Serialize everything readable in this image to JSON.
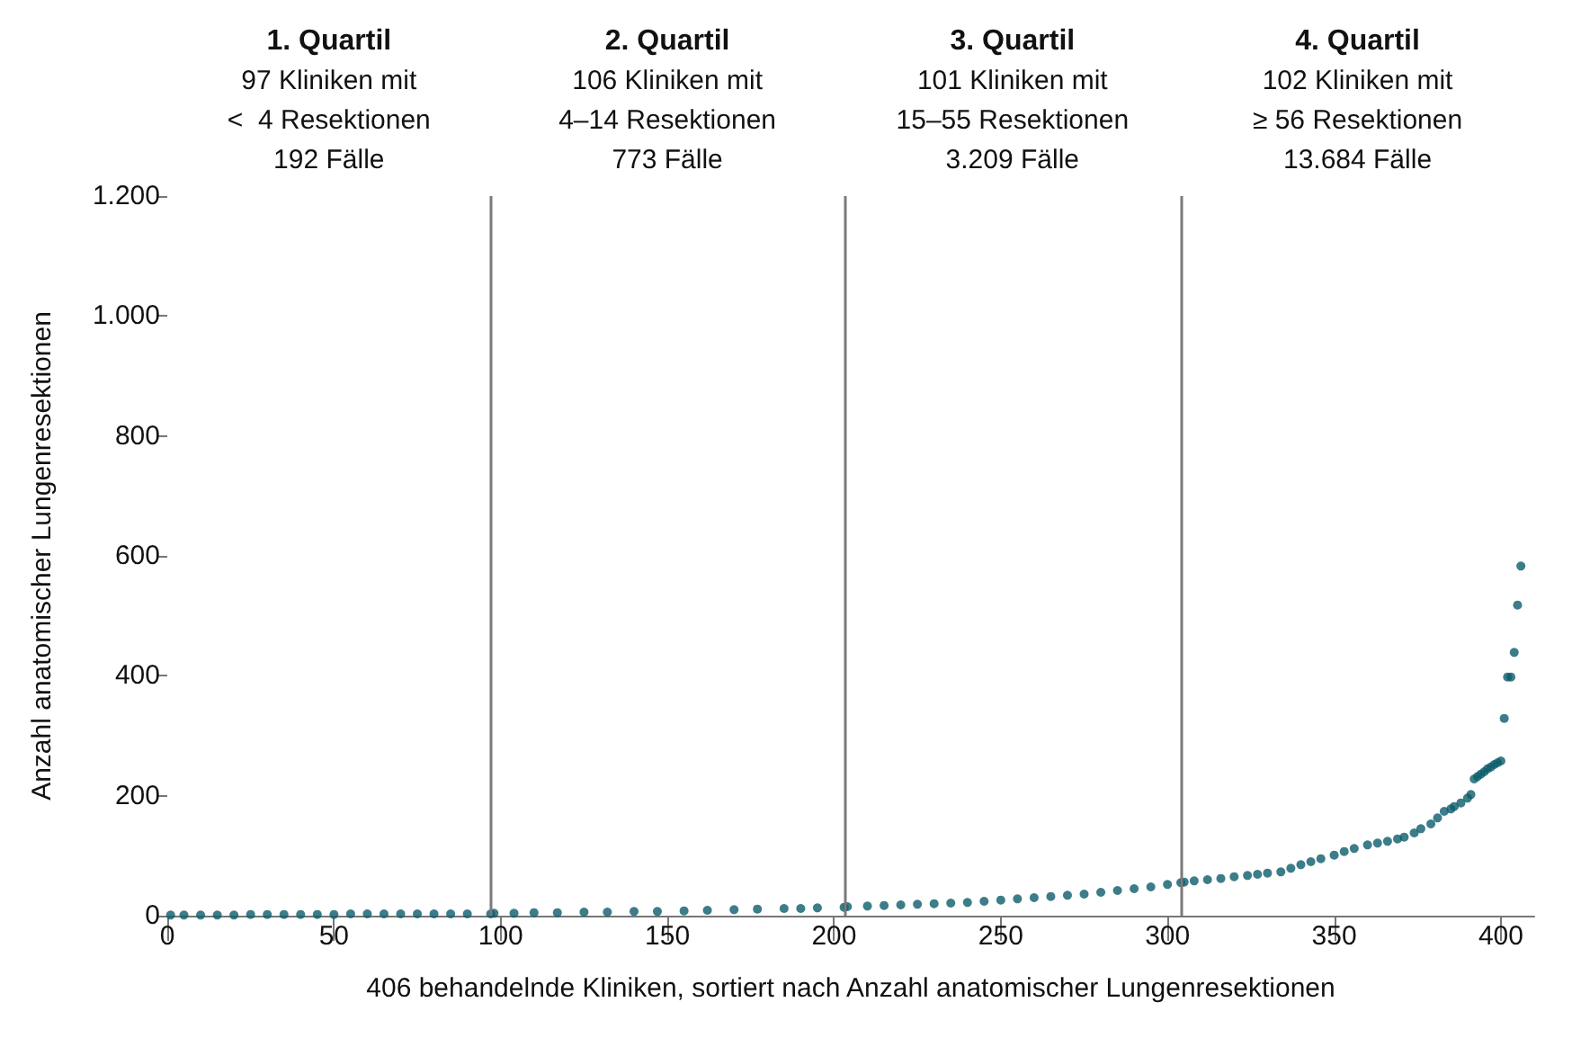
{
  "chart_data": {
    "type": "scatter",
    "xlabel": "406 behandelnde Kliniken, sortiert nach Anzahl anatomischer Lungenresektionen",
    "ylabel": "Anzahl anatomischer Lungenresektionen",
    "annotations": [
      "1. Quartil\n97 Kliniken mit\n<  4 Resektionen\n192 Fälle",
      "2. Quartil\n106 Kliniken mit\n4–14 Resektionen\n773 Fälle",
      "3. Quartil\n101 Kliniken mit\n15–55 Resektionen\n3.209 Fälle",
      "4. Quartil\n102 Kliniken mit\n≥ 56 Resektionen\n13.684 Fälle"
    ],
    "series": [
      {
        "color": "#0b5c6b",
        "x": [
          1,
          5,
          10,
          15,
          20,
          25,
          30,
          35,
          40,
          45,
          50,
          55,
          60,
          65,
          70,
          75,
          80,
          85,
          90,
          97,
          98,
          104,
          110,
          117,
          125,
          132,
          140,
          147,
          155,
          162,
          170,
          177,
          185,
          190,
          195,
          203,
          204,
          210,
          215,
          220,
          225,
          230,
          235,
          240,
          245,
          250,
          255,
          260,
          265,
          270,
          275,
          280,
          285,
          290,
          295,
          300,
          304,
          305,
          308,
          312,
          316,
          320,
          324,
          327,
          330,
          334,
          337,
          340,
          343,
          346,
          350,
          353,
          356,
          360,
          363,
          366,
          369,
          371,
          374,
          376,
          379,
          381,
          383,
          385,
          386,
          388,
          390,
          391,
          392,
          393,
          394,
          395,
          396,
          397,
          398,
          399,
          400,
          401,
          402,
          403,
          404,
          405,
          406
        ],
        "values": [
          1,
          1,
          1,
          1,
          1,
          2,
          2,
          2,
          2,
          2,
          2,
          3,
          3,
          3,
          3,
          3,
          3,
          3,
          3,
          3,
          4,
          4,
          5,
          5,
          6,
          6,
          7,
          7,
          8,
          9,
          10,
          11,
          12,
          12,
          13,
          14,
          15,
          16,
          17,
          18,
          19,
          20,
          21,
          22,
          24,
          26,
          28,
          30,
          32,
          34,
          36,
          39,
          42,
          45,
          48,
          52,
          55,
          56,
          58,
          60,
          62,
          65,
          67,
          69,
          71,
          73,
          79,
          85,
          90,
          95,
          101,
          107,
          112,
          118,
          121,
          124,
          128,
          131,
          138,
          145,
          153,
          163,
          174,
          178,
          182,
          188,
          196,
          202,
          228,
          232,
          236,
          240,
          245,
          248,
          252,
          255,
          258,
          329,
          398,
          398,
          439,
          518,
          583
        ]
      }
    ],
    "xlim": [
      0,
      410
    ],
    "xticks": [
      0,
      50,
      100,
      150,
      200,
      250,
      300,
      350,
      400
    ],
    "ylim": [
      0,
      1200
    ],
    "yticks": [
      0,
      200,
      400,
      600,
      800,
      {
        "value": 1000,
        "label": "1.000"
      },
      {
        "value": 1200,
        "label": "1.200"
      }
    ],
    "ref_lines": [
      {
        "axis": "x",
        "value": 97,
        "color": "#7a7a7a"
      },
      {
        "axis": "x",
        "value": 203,
        "color": "#7a7a7a"
      },
      {
        "axis": "x",
        "value": 304,
        "color": "#7a7a7a"
      }
    ],
    "grid": false,
    "marker": "circle"
  }
}
